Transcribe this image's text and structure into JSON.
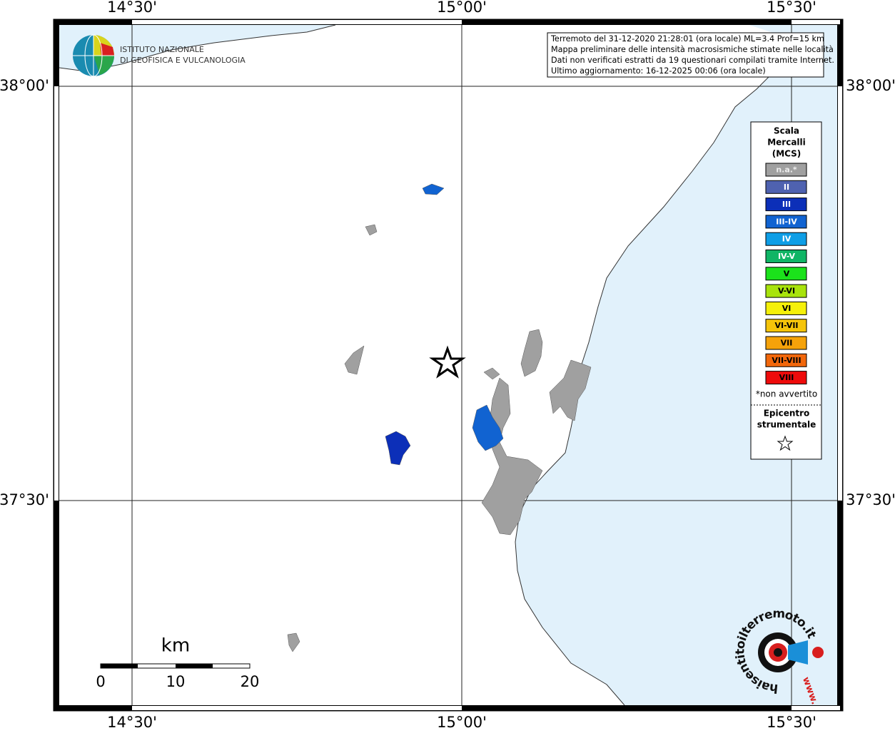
{
  "map": {
    "lon_labels": [
      "14°30'",
      "15°00'",
      "15°30'"
    ],
    "lat_labels": [
      "38°00'",
      "37°30'"
    ],
    "logo": {
      "line1": "ISTITUTO NAZIONALE",
      "line2": "DI GEOFISICA E VULCANOLOGIA"
    },
    "info": [
      "Terremoto del 31-12-2020 21:28:01 (ora locale) ML=3.4 Prof=15 km",
      "Mappa preliminare delle intensità macrosismiche stimate nelle località",
      "Dati non verificati estratti da 19 questionari compilati tramite Internet.",
      "Ultimo aggiornamento: 16-12-2025 00:06 (ora locale)"
    ],
    "legend": {
      "title": [
        "Scala",
        "Mercalli",
        "(MCS)"
      ],
      "items": [
        {
          "label": "n.a.*",
          "color": "#a0a0a0"
        },
        {
          "label": "II",
          "color": "#4f62b0"
        },
        {
          "label": "III",
          "color": "#0c2fb8"
        },
        {
          "label": "III-IV",
          "color": "#1163d1"
        },
        {
          "label": "IV",
          "color": "#0e9ee6"
        },
        {
          "label": "IV-V",
          "color": "#10b565"
        },
        {
          "label": "V",
          "color": "#1be21b"
        },
        {
          "label": "V-VI",
          "color": "#a8e30c"
        },
        {
          "label": "VI",
          "color": "#f5f00a"
        },
        {
          "label": "VI-VII",
          "color": "#f5c40a"
        },
        {
          "label": "VII",
          "color": "#f5a20a"
        },
        {
          "label": "VII-VIII",
          "color": "#f2670b"
        },
        {
          "label": "VIII",
          "color": "#ee0b0b"
        }
      ],
      "footnote": "*non avvertito",
      "epicenter": [
        "Epicentro",
        "strumentale"
      ]
    },
    "scale": {
      "unit": "km",
      "ticks": [
        "0",
        "10",
        "20"
      ]
    },
    "badge": {
      "ring": "haisentitoilterremoto.it",
      "www": "www."
    }
  }
}
